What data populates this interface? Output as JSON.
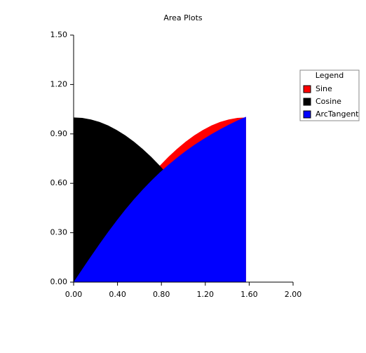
{
  "chart_data": {
    "type": "area",
    "title": "Area Plots",
    "x": [
      0,
      0.0785,
      0.1571,
      0.2356,
      0.3142,
      0.3927,
      0.4712,
      0.5498,
      0.6283,
      0.7069,
      0.7854,
      0.8639,
      0.9425,
      1.021,
      1.0996,
      1.1781,
      1.2566,
      1.3352,
      1.4137,
      1.4923,
      1.5708
    ],
    "series": [
      {
        "name": "Sine",
        "color": "#ff0000",
        "values": [
          0,
          0.0785,
          0.1564,
          0.2334,
          0.309,
          0.3827,
          0.454,
          0.5225,
          0.5878,
          0.6494,
          0.7071,
          0.7604,
          0.809,
          0.8526,
          0.891,
          0.9239,
          0.9511,
          0.9724,
          0.9877,
          0.9969,
          1.0
        ]
      },
      {
        "name": "Cosine",
        "color": "#000000",
        "values": [
          1.0,
          0.9969,
          0.9877,
          0.9724,
          0.9511,
          0.9239,
          0.891,
          0.8526,
          0.809,
          0.7604,
          0.7071,
          0.6494,
          0.5878,
          0.5225,
          0.454,
          0.3827,
          0.309,
          0.2334,
          0.1564,
          0.0785,
          0
        ]
      },
      {
        "name": "ArcTangent",
        "color": "#0000ff",
        "values": [
          0,
          0.0784,
          0.1558,
          0.2314,
          0.3044,
          0.3738,
          0.4406,
          0.5026,
          0.561,
          0.6155,
          0.6658,
          0.7124,
          0.7555,
          0.7958,
          0.833,
          0.8668,
          0.8987,
          0.9281,
          0.9556,
          0.981,
          1.0039
        ]
      }
    ],
    "legend_title": "Legend",
    "legend": "right",
    "xlim": [
      0,
      2
    ],
    "xticks": [
      {
        "value": 0,
        "label": "0.00"
      },
      {
        "value": 0.4,
        "label": "0.40"
      },
      {
        "value": 0.8,
        "label": "0.80"
      },
      {
        "value": 1.2,
        "label": "1.20"
      },
      {
        "value": 1.6,
        "label": "1.60"
      },
      {
        "value": 2,
        "label": "2.00"
      }
    ],
    "ylim": [
      0,
      1.5
    ],
    "yticks": [
      {
        "value": 0,
        "label": "0.00"
      },
      {
        "value": 0.3,
        "label": "0.30"
      },
      {
        "value": 0.6,
        "label": "0.60"
      },
      {
        "value": 0.9,
        "label": "0.90"
      },
      {
        "value": 1.2,
        "label": "1.20"
      },
      {
        "value": 1.5,
        "label": "1.50"
      }
    ]
  }
}
